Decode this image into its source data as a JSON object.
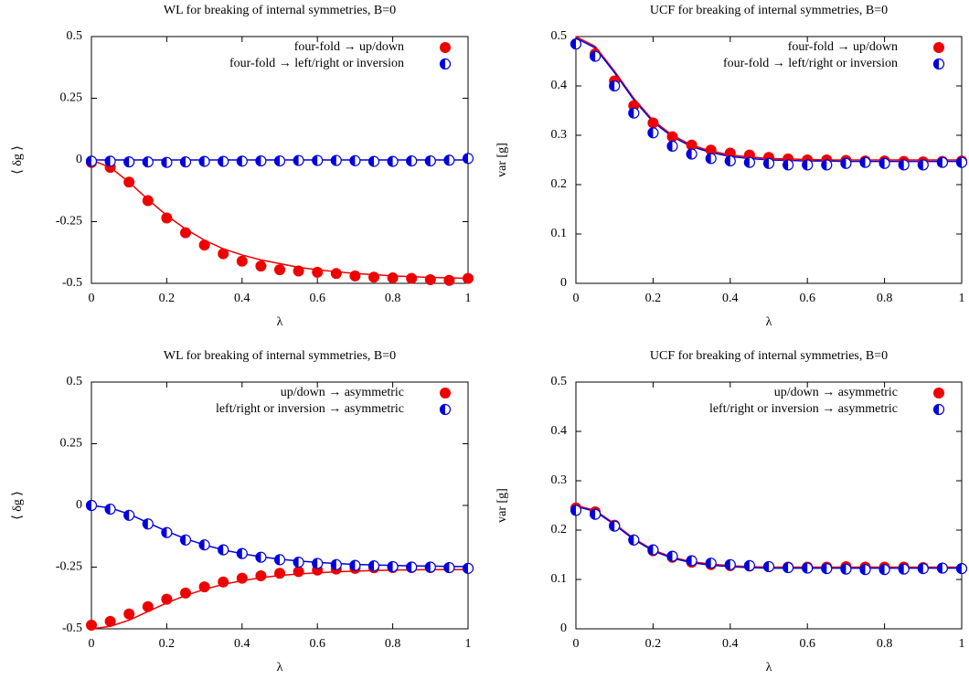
{
  "chart_data": [
    {
      "type": "scatter",
      "title": "WL for breaking of internal symmetries, B=0",
      "xlabel": "λ",
      "ylabel": "⟨ δg ⟩",
      "x": [
        0,
        0.05,
        0.1,
        0.15,
        0.2,
        0.25,
        0.3,
        0.35,
        0.4,
        0.45,
        0.5,
        0.55,
        0.6,
        0.65,
        0.7,
        0.75,
        0.8,
        0.85,
        0.9,
        0.95,
        1
      ],
      "xlim": [
        0,
        1
      ],
      "xticks": [
        0,
        0.2,
        0.4,
        0.6,
        0.8,
        1
      ],
      "ylim": [
        -0.5,
        0.5
      ],
      "yticks": [
        -0.5,
        -0.25,
        0,
        0.25,
        0.5
      ],
      "legend": "top right",
      "series": [
        {
          "name": "four-fold → up/down",
          "color": "#ee0000",
          "marker": "filled",
          "values": [
            -0.01,
            -0.03,
            -0.09,
            -0.165,
            -0.235,
            -0.295,
            -0.345,
            -0.38,
            -0.41,
            -0.43,
            -0.445,
            -0.45,
            -0.455,
            -0.46,
            -0.47,
            -0.475,
            -0.478,
            -0.48,
            -0.485,
            -0.488,
            -0.48
          ],
          "fit": [
            0,
            -0.03,
            -0.09,
            -0.16,
            -0.225,
            -0.28,
            -0.325,
            -0.36,
            -0.385,
            -0.405,
            -0.42,
            -0.435,
            -0.445,
            -0.453,
            -0.46,
            -0.465,
            -0.47,
            -0.473,
            -0.476,
            -0.478,
            -0.48
          ]
        },
        {
          "name": "four-fold → left/right or inversion",
          "color": "#0000dd",
          "marker": "half",
          "values": [
            -0.005,
            -0.005,
            -0.008,
            -0.008,
            -0.01,
            -0.008,
            -0.006,
            -0.006,
            -0.005,
            -0.004,
            -0.004,
            -0.002,
            -0.002,
            -0.002,
            -0.003,
            -0.006,
            -0.006,
            -0.004,
            -0.004,
            -0.001,
            0.006
          ],
          "fit": [
            0,
            0,
            0,
            0,
            0,
            0,
            0,
            0,
            0,
            0,
            0,
            0,
            0,
            0,
            0,
            0,
            0,
            0,
            0,
            0,
            0
          ]
        }
      ]
    },
    {
      "type": "scatter",
      "title": "UCF for breaking of internal symmetries, B=0",
      "xlabel": "λ",
      "ylabel": "var [g]",
      "x": [
        0,
        0.05,
        0.1,
        0.15,
        0.2,
        0.25,
        0.3,
        0.35,
        0.4,
        0.45,
        0.5,
        0.55,
        0.6,
        0.65,
        0.7,
        0.75,
        0.8,
        0.85,
        0.9,
        0.95,
        1
      ],
      "xlim": [
        0,
        1
      ],
      "xticks": [
        0,
        0.2,
        0.4,
        0.6,
        0.8,
        1
      ],
      "ylim": [
        0,
        0.5
      ],
      "yticks": [
        0,
        0.1,
        0.2,
        0.3,
        0.4,
        0.5
      ],
      "legend": "top right",
      "series": [
        {
          "name": "four-fold → up/down",
          "color": "#ee0000",
          "marker": "filled",
          "values": [
            0.485,
            0.465,
            0.41,
            0.36,
            0.325,
            0.297,
            0.28,
            0.27,
            0.264,
            0.26,
            0.255,
            0.252,
            0.25,
            0.25,
            0.249,
            0.248,
            0.248,
            0.247,
            0.246,
            0.247,
            0.248
          ],
          "fit": [
            0.5,
            0.48,
            0.43,
            0.375,
            0.33,
            0.3,
            0.28,
            0.268,
            0.26,
            0.256,
            0.253,
            0.252,
            0.251,
            0.25,
            0.25,
            0.25,
            0.25,
            0.25,
            0.25,
            0.25,
            0.25
          ]
        },
        {
          "name": "four-fold → left/right or inversion",
          "color": "#0000dd",
          "marker": "half",
          "values": [
            0.485,
            0.46,
            0.4,
            0.345,
            0.305,
            0.278,
            0.262,
            0.253,
            0.248,
            0.245,
            0.243,
            0.24,
            0.24,
            0.24,
            0.243,
            0.245,
            0.243,
            0.24,
            0.24,
            0.245,
            0.245
          ],
          "fit": [
            0.497,
            0.477,
            0.427,
            0.372,
            0.327,
            0.297,
            0.277,
            0.265,
            0.257,
            0.253,
            0.25,
            0.249,
            0.248,
            0.248,
            0.247,
            0.247,
            0.247,
            0.247,
            0.247,
            0.247,
            0.247
          ]
        }
      ]
    },
    {
      "type": "scatter",
      "title": "WL for breaking of internal symmetries, B=0",
      "xlabel": "λ",
      "ylabel": "⟨ δg ⟩",
      "x": [
        0,
        0.05,
        0.1,
        0.15,
        0.2,
        0.25,
        0.3,
        0.35,
        0.4,
        0.45,
        0.5,
        0.55,
        0.6,
        0.65,
        0.7,
        0.75,
        0.8,
        0.85,
        0.9,
        0.95,
        1
      ],
      "xlim": [
        0,
        1
      ],
      "xticks": [
        0,
        0.2,
        0.4,
        0.6,
        0.8,
        1
      ],
      "ylim": [
        -0.5,
        0.5
      ],
      "yticks": [
        -0.5,
        -0.25,
        0,
        0.25,
        0.5
      ],
      "legend": "top right",
      "series": [
        {
          "name": "up/down → asymmetric",
          "color": "#ee0000",
          "marker": "filled",
          "values": [
            -0.485,
            -0.47,
            -0.44,
            -0.41,
            -0.38,
            -0.355,
            -0.33,
            -0.31,
            -0.295,
            -0.285,
            -0.275,
            -0.268,
            -0.262,
            -0.258,
            -0.255,
            -0.253,
            -0.252,
            -0.252,
            -0.252,
            -0.252,
            -0.255
          ],
          "fit": [
            -0.5,
            -0.49,
            -0.465,
            -0.43,
            -0.395,
            -0.365,
            -0.34,
            -0.32,
            -0.305,
            -0.293,
            -0.284,
            -0.278,
            -0.273,
            -0.269,
            -0.266,
            -0.264,
            -0.262,
            -0.261,
            -0.26,
            -0.26,
            -0.26
          ]
        },
        {
          "name": "left/right or inversion → asymmetric",
          "color": "#0000dd",
          "marker": "half",
          "values": [
            0,
            -0.015,
            -0.04,
            -0.075,
            -0.11,
            -0.14,
            -0.16,
            -0.18,
            -0.195,
            -0.21,
            -0.22,
            -0.23,
            -0.235,
            -0.24,
            -0.243,
            -0.245,
            -0.248,
            -0.25,
            -0.25,
            -0.252,
            -0.255
          ],
          "fit": [
            0,
            -0.01,
            -0.035,
            -0.07,
            -0.105,
            -0.135,
            -0.16,
            -0.18,
            -0.196,
            -0.208,
            -0.218,
            -0.225,
            -0.231,
            -0.235,
            -0.239,
            -0.241,
            -0.243,
            -0.245,
            -0.246,
            -0.247,
            -0.248
          ]
        }
      ]
    },
    {
      "type": "scatter",
      "title": "UCF for breaking of internal symmetries, B=0",
      "xlabel": "λ",
      "ylabel": "var [g]",
      "x": [
        0,
        0.05,
        0.1,
        0.15,
        0.2,
        0.25,
        0.3,
        0.35,
        0.4,
        0.45,
        0.5,
        0.55,
        0.6,
        0.65,
        0.7,
        0.75,
        0.8,
        0.85,
        0.9,
        0.95,
        1
      ],
      "xlim": [
        0,
        1
      ],
      "xticks": [
        0,
        0.2,
        0.4,
        0.6,
        0.8,
        1
      ],
      "ylim": [
        0,
        0.5
      ],
      "yticks": [
        0,
        0.1,
        0.2,
        0.3,
        0.4,
        0.5
      ],
      "legend": "top right",
      "series": [
        {
          "name": "up/down → asymmetric",
          "color": "#ee0000",
          "marker": "filled",
          "values": [
            0.245,
            0.237,
            0.21,
            0.18,
            0.158,
            0.145,
            0.135,
            0.13,
            0.128,
            0.127,
            0.126,
            0.125,
            0.125,
            0.125,
            0.126,
            0.125,
            0.125,
            0.125,
            0.124,
            0.123,
            0.122
          ],
          "fit": [
            0.25,
            0.24,
            0.213,
            0.183,
            0.16,
            0.145,
            0.136,
            0.131,
            0.128,
            0.126,
            0.125,
            0.125,
            0.125,
            0.125,
            0.125,
            0.125,
            0.125,
            0.125,
            0.125,
            0.125,
            0.125
          ]
        },
        {
          "name": "left/right or inversion → asymmetric",
          "color": "#0000dd",
          "marker": "half",
          "values": [
            0.24,
            0.232,
            0.208,
            0.18,
            0.16,
            0.147,
            0.138,
            0.133,
            0.13,
            0.128,
            0.126,
            0.124,
            0.123,
            0.122,
            0.121,
            0.12,
            0.12,
            0.121,
            0.122,
            0.123,
            0.122
          ],
          "fit": [
            0.248,
            0.238,
            0.211,
            0.181,
            0.158,
            0.143,
            0.134,
            0.129,
            0.126,
            0.124,
            0.123,
            0.123,
            0.123,
            0.123,
            0.123,
            0.123,
            0.123,
            0.123,
            0.123,
            0.123,
            0.123
          ]
        }
      ]
    }
  ]
}
